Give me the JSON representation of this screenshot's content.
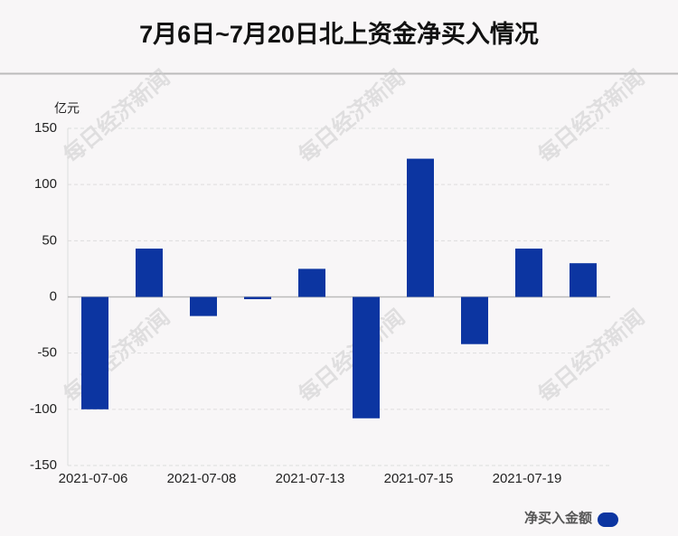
{
  "chart_data": {
    "type": "bar",
    "title": "7月6日~7月20日北上资金净买入情况",
    "unit_label": "亿元",
    "watermark": "每日经济新闻",
    "categories": [
      "2021-07-06",
      null,
      "2021-07-08",
      null,
      "2021-07-13",
      null,
      "2021-07-15",
      null,
      "2021-07-19",
      null
    ],
    "series": [
      {
        "name": "净买入金额",
        "color": "#0c35a1",
        "values": [
          -100,
          43,
          -17,
          -2,
          25,
          -108,
          123,
          -42,
          43,
          30
        ]
      }
    ],
    "ylim": [
      -150,
      150
    ],
    "yticks": [
      -150,
      -100,
      -50,
      0,
      50,
      100,
      150
    ],
    "grid": true,
    "legend": "bottom-right"
  }
}
